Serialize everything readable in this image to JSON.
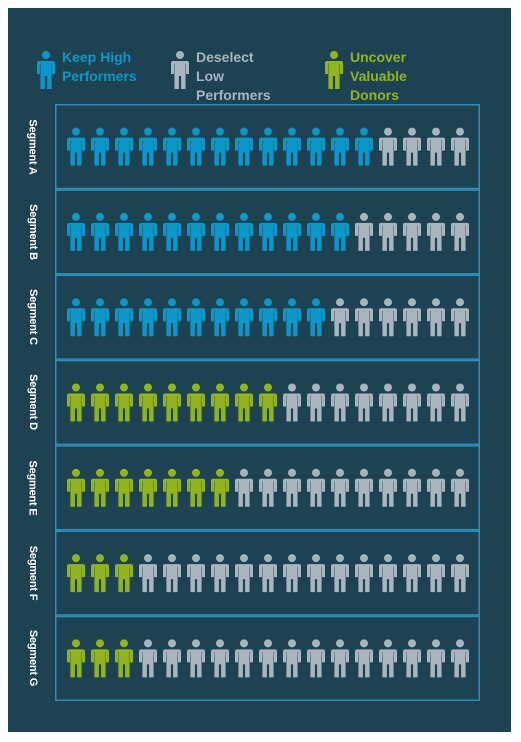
{
  "colors": {
    "background": "#1d4252",
    "border": "#2a8fbd",
    "keep": "#0a97c9",
    "deselect": "#a8b5bc",
    "uncover": "#92b51d"
  },
  "legend": [
    {
      "key": "keep",
      "label": "Keep High\nPerformers",
      "icon": "person-icon"
    },
    {
      "key": "deselect",
      "label": "Deselect Low\nPerformers",
      "icon": "person-icon"
    },
    {
      "key": "uncover",
      "label": "Uncover Valuable\nDonors",
      "icon": "person-icon"
    }
  ],
  "chart_data": {
    "type": "pictograph",
    "icons_per_row": 17,
    "categories": [
      "Segment A",
      "Segment B",
      "Segment C",
      "Segment D",
      "Segment E",
      "Segment F",
      "Segment G"
    ],
    "series": [
      {
        "key": "keep",
        "name": "Keep High Performers",
        "values": [
          13,
          12,
          11,
          0,
          0,
          0,
          0
        ]
      },
      {
        "key": "uncover",
        "name": "Uncover Valuable Donors",
        "values": [
          0,
          0,
          0,
          9,
          7,
          3,
          3
        ]
      },
      {
        "key": "deselect",
        "name": "Deselect Low Performers",
        "values": [
          4,
          5,
          6,
          8,
          10,
          14,
          14
        ]
      }
    ]
  }
}
